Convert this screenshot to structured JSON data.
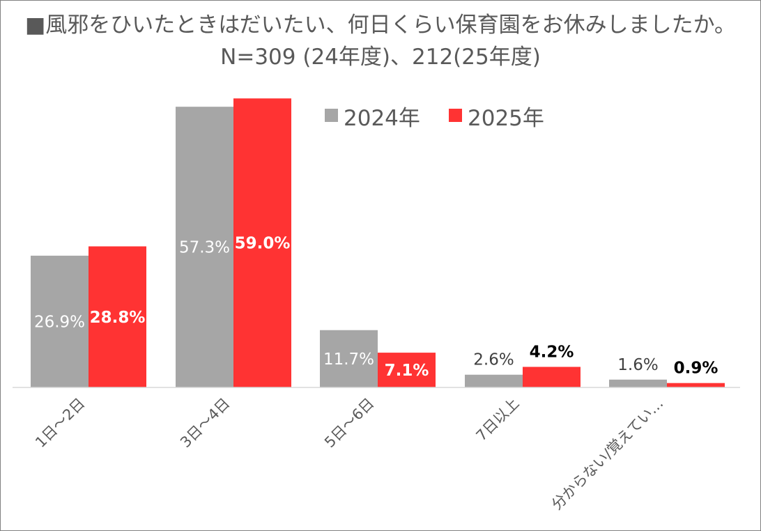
{
  "chart_data": {
    "type": "bar",
    "title": "■風邪をひいたときはだいたい、何日くらい保育園をお休みしましたか。",
    "subtitle": "N=309 (24年度)、212(25年度)",
    "xlabel": "",
    "ylabel": "",
    "ylim": [
      0,
      65
    ],
    "grid": false,
    "legend_position": "top-right",
    "categories": [
      "1日～2日",
      "3日～4日",
      "5日～6日",
      "7日以上",
      "分からない/覚えてい…"
    ],
    "series": [
      {
        "name": "2024年",
        "color": "#A6A6A6",
        "values": [
          26.9,
          57.3,
          11.7,
          2.6,
          1.6
        ],
        "labels": [
          "26.9%",
          "57.3%",
          "11.7%",
          "2.6%",
          "1.6%"
        ]
      },
      {
        "name": "2025年",
        "color": "#FF3333",
        "values": [
          28.8,
          59.0,
          7.1,
          4.2,
          0.9
        ],
        "labels": [
          "28.8%",
          "59.0%",
          "7.1%",
          "4.2%",
          "0.9%"
        ]
      }
    ]
  }
}
